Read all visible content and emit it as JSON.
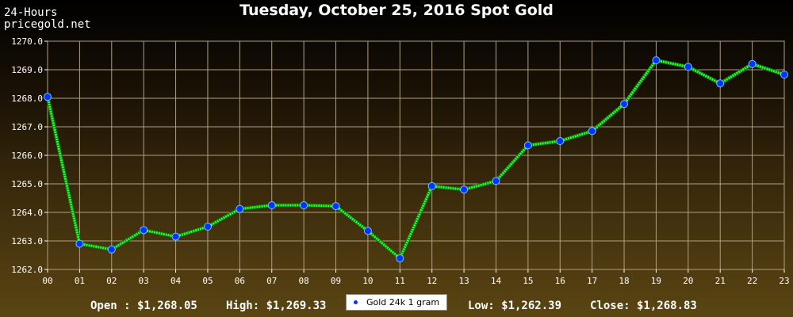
{
  "brand": {
    "line1": "24-Hours",
    "line2": "pricegold.net"
  },
  "chart_data": {
    "type": "line",
    "title": "Tuesday, October 25, 2016 Spot Gold",
    "xlabel": "",
    "ylabel": "",
    "categories": [
      "00",
      "01",
      "02",
      "03",
      "04",
      "05",
      "06",
      "07",
      "08",
      "09",
      "10",
      "11",
      "12",
      "13",
      "14",
      "15",
      "16",
      "17",
      "18",
      "19",
      "20",
      "21",
      "22",
      "23"
    ],
    "yticks": [
      "1262.0",
      "1263.0",
      "1264.0",
      "1265.0",
      "1266.0",
      "1267.0",
      "1268.0",
      "1269.0",
      "1270.0"
    ],
    "ylim": [
      1262.0,
      1270.0
    ],
    "grid": true,
    "legend_position": "bottom-center",
    "series": [
      {
        "name": "Gold 24k 1 gram",
        "line_color": "#33ff33",
        "marker_color": "#0033ff",
        "values": [
          1268.05,
          1262.9,
          1262.7,
          1263.38,
          1263.15,
          1263.5,
          1264.12,
          1264.25,
          1264.25,
          1264.22,
          1263.35,
          1262.39,
          1264.92,
          1264.8,
          1265.1,
          1266.35,
          1266.5,
          1266.85,
          1267.8,
          1269.33,
          1269.1,
          1268.52,
          1269.2,
          1268.83
        ]
      }
    ],
    "colors": {
      "grid": "#b0a080",
      "plot_border": "#ffffff"
    }
  },
  "stats": {
    "open": "Open : $1,268.05",
    "high": "High: $1,269.33",
    "low": "Low: $1,262.39",
    "close": "Close: $1,268.83"
  },
  "legend": {
    "label": "Gold 24k 1 gram"
  }
}
